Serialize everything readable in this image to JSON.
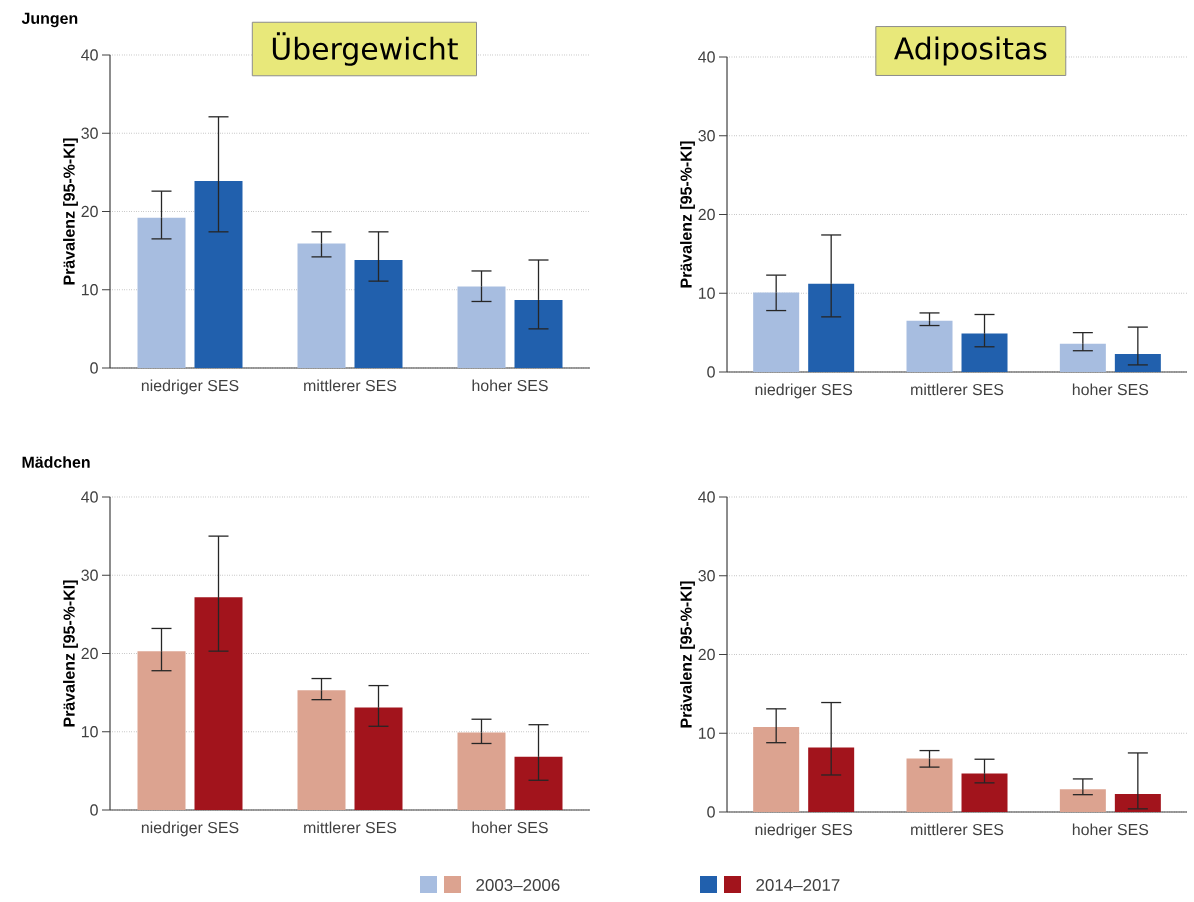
{
  "chart_data": [
    {
      "type": "bar",
      "title": "Übergewicht",
      "subtitle": "Jungen",
      "ylabel": "Prävalenz [95-%-KI]",
      "categories": [
        "niedriger SES",
        "mittlerer SES",
        "hoher SES"
      ],
      "ylim": [
        0,
        40
      ],
      "yticks": [
        0,
        10,
        20,
        30,
        40
      ],
      "grid": "y",
      "series": [
        {
          "color": "#a7bde0",
          "values": [
            19.2,
            15.9,
            10.4
          ],
          "errors": [
            [
              16.5,
              22.6
            ],
            [
              14.2,
              17.4
            ],
            [
              8.5,
              12.4
            ]
          ]
        },
        {
          "color": "#2160ad",
          "values": [
            23.9,
            13.8,
            8.7
          ],
          "errors": [
            [
              17.4,
              32.1
            ],
            [
              11.1,
              17.4
            ],
            [
              5.0,
              13.8
            ]
          ]
        }
      ]
    },
    {
      "type": "bar",
      "title": "Adipositas",
      "ylabel": "Prävalenz [95-%-KI]",
      "categories": [
        "niedriger SES",
        "mittlerer SES",
        "hoher SES"
      ],
      "ylim": [
        0,
        40
      ],
      "yticks": [
        0,
        10,
        20,
        30,
        40
      ],
      "grid": "y",
      "series": [
        {
          "color": "#a7bde0",
          "values": [
            10.1,
            6.5,
            3.6
          ],
          "errors": [
            [
              7.8,
              12.3
            ],
            [
              5.9,
              7.5
            ],
            [
              2.7,
              5.0
            ]
          ]
        },
        {
          "color": "#2160ad",
          "values": [
            11.2,
            4.9,
            2.3
          ],
          "errors": [
            [
              7.0,
              17.4
            ],
            [
              3.2,
              7.3
            ],
            [
              0.9,
              5.7
            ]
          ]
        }
      ]
    },
    {
      "type": "bar",
      "subtitle": "Mädchen",
      "ylabel": "Prävalenz [95-%-KI]",
      "categories": [
        "niedriger SES",
        "mittlerer SES",
        "hoher SES"
      ],
      "ylim": [
        0,
        40
      ],
      "yticks": [
        0,
        10,
        20,
        30,
        40
      ],
      "grid": "y",
      "series": [
        {
          "color": "#dca390",
          "values": [
            20.3,
            15.3,
            9.9
          ],
          "errors": [
            [
              17.8,
              23.2
            ],
            [
              14.1,
              16.8
            ],
            [
              8.5,
              11.6
            ]
          ]
        },
        {
          "color": "#a2141c",
          "values": [
            27.2,
            13.1,
            6.8
          ],
          "errors": [
            [
              20.3,
              35.0
            ],
            [
              10.7,
              15.9
            ],
            [
              3.8,
              10.9
            ]
          ]
        }
      ]
    },
    {
      "type": "bar",
      "ylabel": "Prävalenz [95-%-KI]",
      "categories": [
        "niedriger SES",
        "mittlerer SES",
        "hoher SES"
      ],
      "ylim": [
        0,
        40
      ],
      "yticks": [
        0,
        10,
        20,
        30,
        40
      ],
      "grid": "y",
      "legend": "bottom",
      "series": [
        {
          "name": "2003–2006",
          "color": "#dca390",
          "values": [
            10.8,
            6.8,
            2.9
          ],
          "errors": [
            [
              8.8,
              13.1
            ],
            [
              5.7,
              7.8
            ],
            [
              2.2,
              4.2
            ]
          ]
        },
        {
          "name": "2014–2017",
          "color": "#a2141c",
          "values": [
            8.2,
            4.9,
            2.3
          ],
          "errors": [
            [
              4.7,
              13.9
            ],
            [
              3.7,
              6.7
            ],
            [
              0.4,
              7.5
            ]
          ]
        }
      ]
    }
  ]
}
